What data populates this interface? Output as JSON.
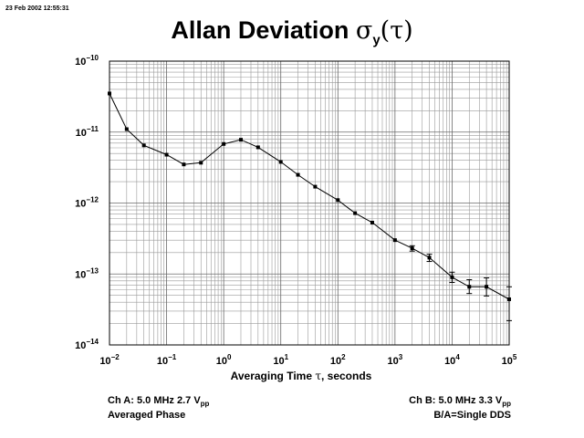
{
  "timestamp": "23 Feb 2002 12:55:31",
  "title": {
    "main": "Allan Deviation ",
    "symbol": "σ",
    "sub": "y",
    "arg": "(τ)"
  },
  "xlabel": {
    "before": "Averaging Time ",
    "symbol": "τ",
    "after": ", seconds"
  },
  "info": {
    "ch_a_prefix": "Ch A: 5.0 MHz 2.7 V",
    "ch_a_sub": "pp",
    "ch_a_line2": "Averaged Phase",
    "ch_b_prefix": "Ch B: 5.0 MHz 3.3 V",
    "ch_b_sub": "pp",
    "ch_b_line2": "B/A=Single DDS"
  },
  "chart_data": {
    "type": "line",
    "xscale": "log",
    "yscale": "log",
    "xlim": [
      0.01,
      100000
    ],
    "ylim": [
      1e-14,
      1e-10
    ],
    "grid": true,
    "x_ticks": [
      {
        "base": "10",
        "exp": "−2"
      },
      {
        "base": "10",
        "exp": "−1"
      },
      {
        "base": "10",
        "exp": "0"
      },
      {
        "base": "10",
        "exp": "1"
      },
      {
        "base": "10",
        "exp": "2"
      },
      {
        "base": "10",
        "exp": "3"
      },
      {
        "base": "10",
        "exp": "4"
      },
      {
        "base": "10",
        "exp": "5"
      }
    ],
    "y_ticks": [
      {
        "base": "10",
        "exp": "−10"
      },
      {
        "base": "10",
        "exp": "−11"
      },
      {
        "base": "10",
        "exp": "−12"
      },
      {
        "base": "10",
        "exp": "−13"
      },
      {
        "base": "10",
        "exp": "−14"
      }
    ],
    "series": [
      {
        "x": [
          0.01,
          0.02,
          0.04,
          0.1,
          0.2,
          0.4,
          1,
          2,
          4,
          10,
          20,
          40,
          100,
          200,
          400,
          1000,
          2000,
          4000,
          10000,
          20000,
          40000,
          100000
        ],
        "y": [
          3.5e-11,
          1.1e-11,
          6.5e-12,
          4.8e-12,
          3.5e-12,
          3.7e-12,
          6.8e-12,
          7.8e-12,
          6.1e-12,
          3.8e-12,
          2.5e-12,
          1.7e-12,
          1.1e-12,
          7.2e-13,
          5.3e-13,
          3e-13,
          2.3e-13,
          1.7e-13,
          9e-14,
          6.6e-14,
          6.6e-14,
          4.4e-14
        ],
        "err_low": [
          null,
          null,
          null,
          null,
          null,
          null,
          null,
          null,
          null,
          null,
          null,
          null,
          null,
          null,
          null,
          null,
          2.1e-13,
          1.5e-13,
          7.6e-14,
          5.3e-14,
          4.9e-14,
          2.2e-14
        ],
        "err_high": [
          null,
          null,
          null,
          null,
          null,
          null,
          null,
          null,
          null,
          null,
          null,
          null,
          null,
          null,
          null,
          null,
          2.5e-13,
          1.9e-13,
          1.06e-13,
          8.3e-14,
          8.8e-14,
          6.6e-14
        ]
      }
    ]
  }
}
